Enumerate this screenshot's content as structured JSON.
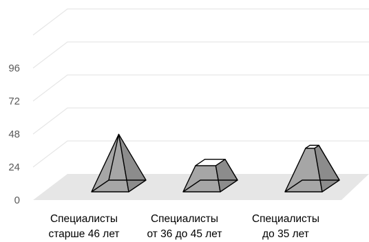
{
  "chart_data": {
    "type": "bar",
    "shape": "3d-pyramid",
    "categories": [
      [
        "Специалисты",
        "старше 46 лет"
      ],
      [
        "Специалисты",
        "от 36 до 45 лет"
      ],
      [
        "Специалисты",
        "до 35 лет"
      ]
    ],
    "values": [
      33,
      15,
      25
    ],
    "y_ticks": [
      "0",
      "24",
      "48",
      "72",
      "96"
    ],
    "ylim": [
      0,
      120
    ],
    "grid": true,
    "legend": "none",
    "colors": {
      "body": "#a6a6a6",
      "side": "#8c8c8c",
      "top": "#ffffff",
      "edge": "#000000",
      "floor": "#e6e6e6",
      "grid": "#e6e6e6",
      "tick_text": "#595959"
    }
  }
}
